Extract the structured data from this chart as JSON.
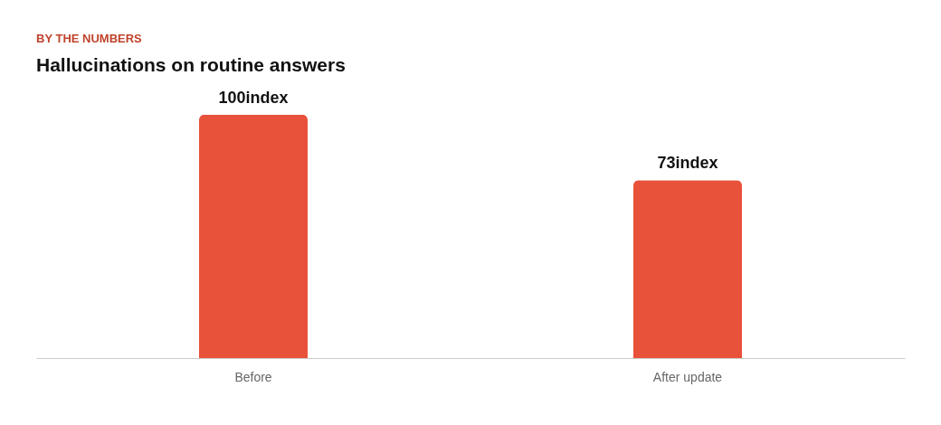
{
  "chart_data": {
    "type": "bar",
    "subtitle": "BY THE NUMBERS",
    "title": "Hallucinations on routine answers",
    "categories": [
      "Before",
      "After update"
    ],
    "values": [
      100,
      73
    ],
    "value_labels": [
      "100index",
      "73index"
    ],
    "color": "#e8523a",
    "grid": false
  }
}
